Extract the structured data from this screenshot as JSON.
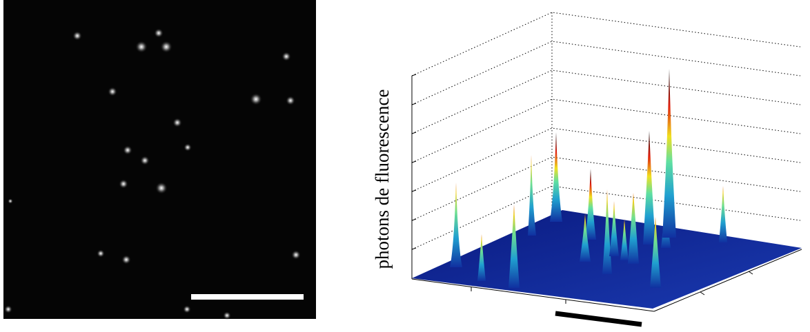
{
  "axis_label": "photons de fluorescence"
}
